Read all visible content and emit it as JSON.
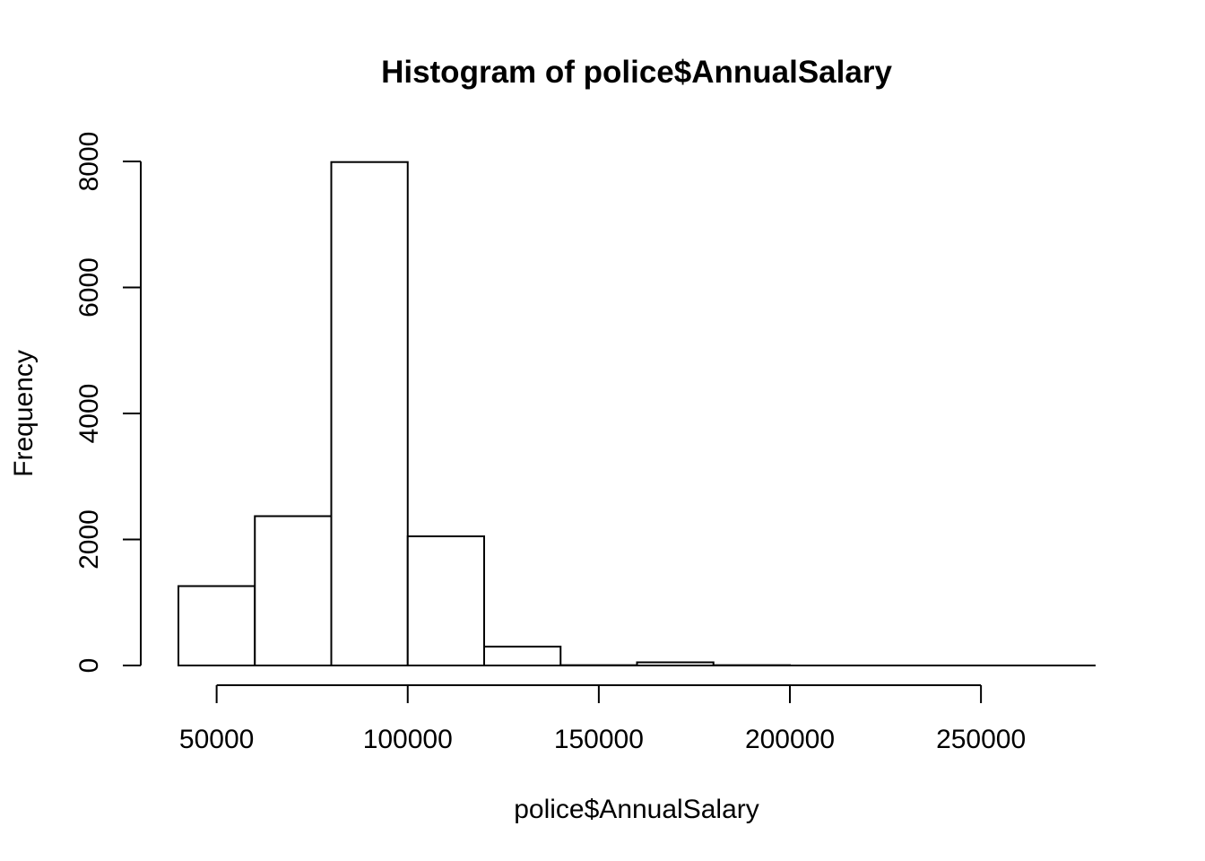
{
  "chart_data": {
    "type": "bar",
    "title": "Histogram of police$AnnualSalary",
    "xlabel": "police$AnnualSalary",
    "ylabel": "Frequency",
    "bin_edges": [
      40000,
      60000,
      80000,
      100000,
      120000,
      140000,
      160000,
      180000,
      200000,
      220000,
      240000,
      260000,
      280000
    ],
    "values": [
      1260,
      2370,
      7990,
      2050,
      300,
      5,
      50,
      5,
      0,
      0,
      0,
      0
    ],
    "x_ticks": [
      50000,
      100000,
      150000,
      200000,
      250000
    ],
    "x_tick_labels": [
      "50000",
      "100000",
      "150000",
      "200000",
      "250000"
    ],
    "y_ticks": [
      0,
      2000,
      4000,
      6000,
      8000
    ],
    "y_tick_labels": [
      "0",
      "2000",
      "4000",
      "6000",
      "8000"
    ],
    "xlim": [
      40000,
      280000
    ],
    "ylim": [
      0,
      8000
    ],
    "grid": false,
    "colors": {
      "bar_fill": "#ffffff",
      "bar_stroke": "#000000"
    }
  }
}
